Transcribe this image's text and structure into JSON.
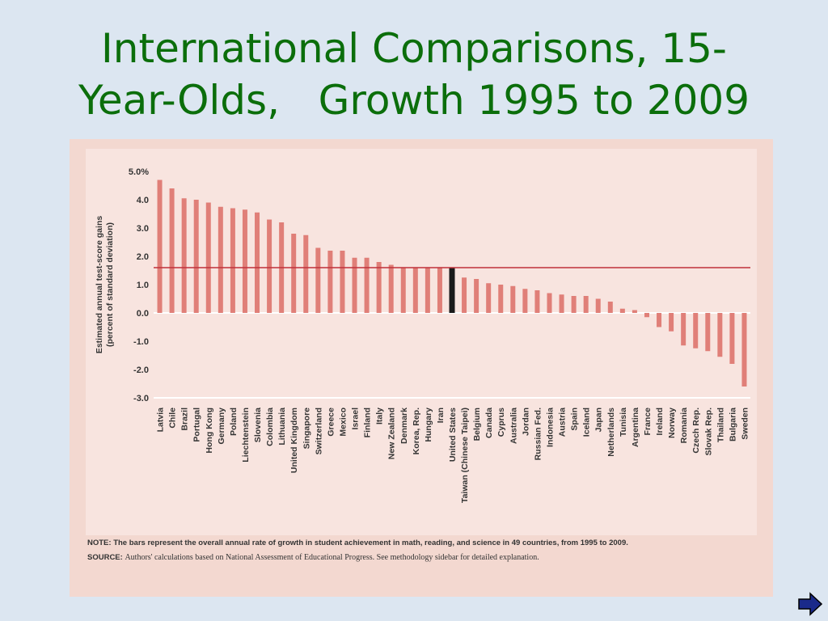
{
  "slide": {
    "title_line1": "International Comparisons, 15-",
    "title_line2": "Year-Olds,   Growth 1995 to 2009"
  },
  "chart_data": {
    "type": "bar",
    "ylabel_line1": "Estimated annual test-score gains",
    "ylabel_line2": "(percent of  standard deviation)",
    "ylim": [
      -3.0,
      5.0
    ],
    "y_ticks": [
      "5.0%",
      "4.0",
      "3.0",
      "2.0",
      "1.0",
      "0.0",
      "-1.0",
      "-2.0",
      "-3.0"
    ],
    "y_tick_values": [
      5,
      4,
      3,
      2,
      1,
      0,
      -1,
      -2,
      -3
    ],
    "reference_line_value": 1.6,
    "categories": [
      "Latvia",
      "Chile",
      "Brazil",
      "Portugal",
      "Hong Kong",
      "Germany",
      "Poland",
      "Liechtenstein",
      "Slovenia",
      "Colombia",
      "Lithuania",
      "United Kingdom",
      "Singapore",
      "Switzerland",
      "Greece",
      "Mexico",
      "Israel",
      "Finland",
      "Italy",
      "New Zealand",
      "Denmark",
      "Korea, Rep.",
      "Hungary",
      "Iran",
      "United States",
      "Taiwan (Chinese Taipei)",
      "Belgium",
      "Canada",
      "Cyprus",
      "Australia",
      "Jordan",
      "Russian Fed.",
      "Indonesia",
      "Austria",
      "Spain",
      "Iceland",
      "Japan",
      "Netherlands",
      "Tunisia",
      "Argentina",
      "France",
      "Ireland",
      "Norway",
      "Romania",
      "Czech Rep.",
      "Slovak Rep.",
      "Thailand",
      "Bulgaria",
      "Sweden"
    ],
    "values": [
      4.7,
      4.4,
      4.05,
      4.0,
      3.9,
      3.75,
      3.7,
      3.65,
      3.55,
      3.3,
      3.2,
      2.8,
      2.75,
      2.3,
      2.2,
      2.2,
      1.95,
      1.95,
      1.8,
      1.7,
      1.6,
      1.6,
      1.6,
      1.6,
      1.6,
      1.25,
      1.2,
      1.05,
      1.0,
      0.95,
      0.85,
      0.8,
      0.7,
      0.65,
      0.6,
      0.6,
      0.5,
      0.4,
      0.15,
      0.1,
      -0.15,
      -0.5,
      -0.65,
      -1.15,
      -1.25,
      -1.35,
      -1.55,
      -1.8,
      -2.6
    ],
    "highlight_category": "United States",
    "bar_color": "#e07f78",
    "highlight_color": "#1a1a1a",
    "reference_line_color": "#c0303a",
    "grid": false,
    "note_label": "NOTE:",
    "note_text": "The bars represent the overall annual rate of growth in student achievement in math, reading, and science in 49 countries, from 1995 to 2009.",
    "source_label": "SOURCE:",
    "source_text": "Authors' calculations based on National Assessment of Educational Progress. See methodology sidebar for detailed explanation."
  },
  "navigation": {
    "next_icon": "right-arrow-icon",
    "next_color": "#1a2a8a"
  }
}
